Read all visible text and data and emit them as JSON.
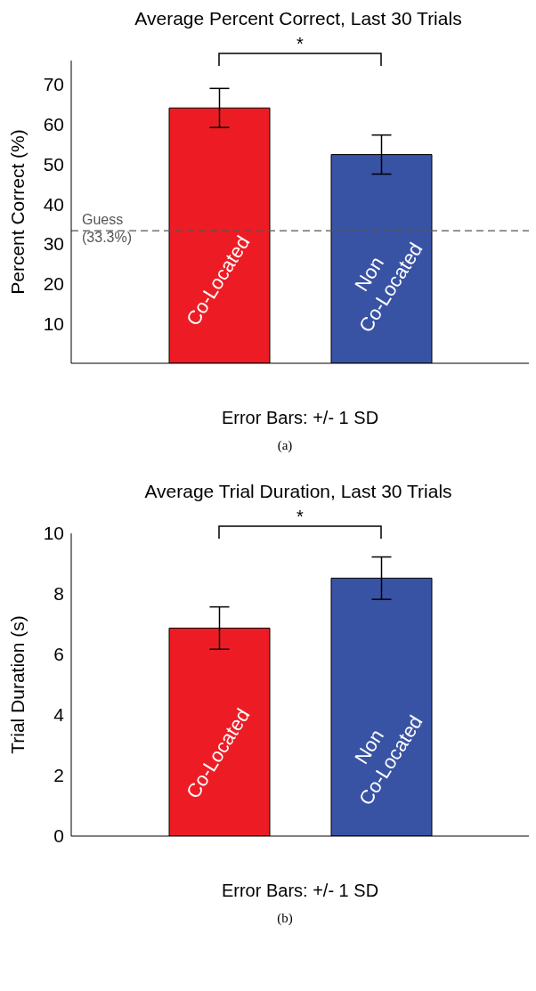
{
  "chart_data": [
    {
      "type": "bar",
      "title": "Average Percent Correct, Last 30 Trials",
      "ylabel": "Percent Correct (%)",
      "xlabel": "Error Bars: +/- 1 SD",
      "categories": [
        "Co-Located",
        "Non\nCo-Located"
      ],
      "values": [
        64.1,
        52.4
      ],
      "errors": [
        4.9,
        4.9
      ],
      "colors": [
        "#ed1c24",
        "#3953a4"
      ],
      "ylim": [
        0,
        76
      ],
      "yticks": [
        10,
        20,
        30,
        40,
        50,
        60,
        70
      ],
      "grid": false,
      "ref_lines": [
        {
          "axis": "y",
          "value": 33.3,
          "label": "Guess\n(33.3%)",
          "color": "#555555",
          "line_style": "dashed"
        }
      ],
      "annotations": [
        "*",
        "(a)"
      ]
    },
    {
      "type": "bar",
      "title": "Average Trial Duration, Last 30 Trials",
      "ylabel": "Trial Duration (s)",
      "xlabel": "Error Bars: +/- 1 SD",
      "categories": [
        "Co-Located",
        "Non\nCo-Located"
      ],
      "values": [
        6.87,
        8.52
      ],
      "errors": [
        0.7,
        0.7
      ],
      "colors": [
        "#ed1c24",
        "#3953a4"
      ],
      "ylim": [
        0,
        10
      ],
      "yticks": [
        0,
        2,
        4,
        6,
        8,
        10
      ],
      "grid": false,
      "annotations": [
        "*",
        "(b)"
      ]
    }
  ]
}
